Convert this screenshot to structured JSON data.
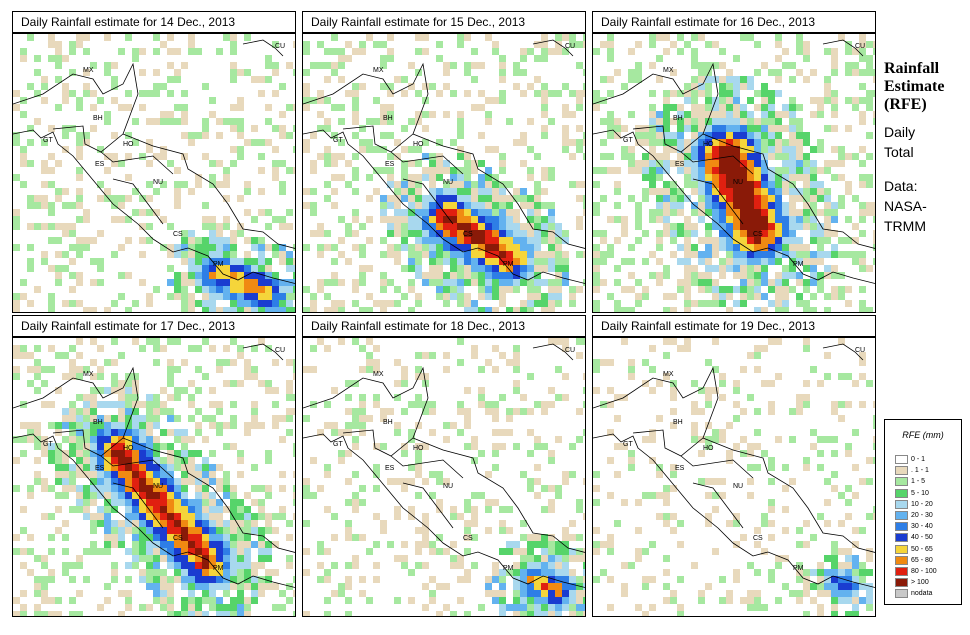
{
  "panels": [
    {
      "title": "Daily Rainfall estimate for  14 Dec., 2013",
      "intensity": 1
    },
    {
      "title": "Daily Rainfall estimate for  15 Dec., 2013",
      "intensity": 2
    },
    {
      "title": "Daily Rainfall estimate for  16 Dec., 2013",
      "intensity": 3
    },
    {
      "title": "Daily Rainfall estimate for  17 Dec., 2013",
      "intensity": 2
    },
    {
      "title": "Daily Rainfall estimate for  18 Dec., 2013",
      "intensity": 1
    },
    {
      "title": "Daily Rainfall estimate for  19 Dec., 2013",
      "intensity": 0
    }
  ],
  "country_labels": [
    "CU",
    "MX",
    "BH",
    "GT",
    "HO",
    "ES",
    "NU",
    "CS",
    "PM"
  ],
  "side": {
    "title_lines": [
      "Rainfall",
      "Estimate",
      "(RFE)"
    ],
    "lines": [
      "Daily",
      "Total",
      "",
      "Data:",
      "NASA-",
      "TRMM"
    ]
  },
  "legend": {
    "title": "RFE (mm)",
    "items": [
      {
        "label": "0 - 1",
        "color": "#ffffff"
      },
      {
        "label": ". 1 - 1",
        "color": "#e8d9bc"
      },
      {
        "label": "1 - 5",
        "color": "#a6e8a0"
      },
      {
        "label": "5 - 10",
        "color": "#56d46a"
      },
      {
        "label": "10 - 20",
        "color": "#a8d8ee"
      },
      {
        "label": "20 - 30",
        "color": "#63b2ef"
      },
      {
        "label": "30 - 40",
        "color": "#2e7ee6"
      },
      {
        "label": "40 - 50",
        "color": "#1a3cd0"
      },
      {
        "label": "50 - 65",
        "color": "#f5d53a"
      },
      {
        "label": "65 - 80",
        "color": "#f08a12"
      },
      {
        "label": "80 - 100",
        "color": "#e02010"
      },
      {
        "label": "> 100",
        "color": "#8a1a08"
      },
      {
        "label": "nodata",
        "color": "#c8c8c8"
      }
    ]
  }
}
